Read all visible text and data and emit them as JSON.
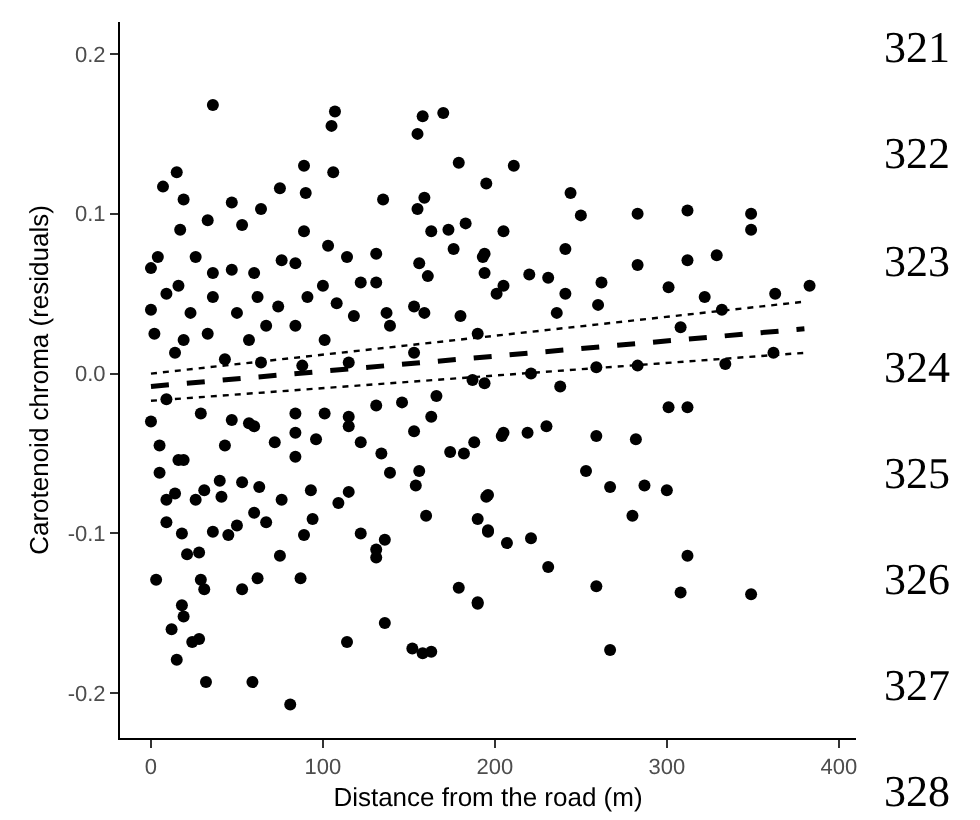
{
  "chart_data": {
    "type": "scatter",
    "xlabel": "Distance from the road (m)",
    "ylabel": "Carotenoid chroma (residuals)",
    "xlim": [
      -18,
      410
    ],
    "xticks": [
      0,
      100,
      200,
      300,
      400
    ],
    "ylim": [
      -0.228,
      0.22
    ],
    "yticks": [
      -0.2,
      -0.1,
      {
        "value": 0,
        "label": "0.0"
      },
      0.1,
      0.2
    ],
    "grid": false,
    "annotations": [
      "321",
      "322",
      "323",
      "324",
      "325",
      "326",
      "327",
      "328"
    ],
    "series": [
      {
        "color": "#000000",
        "marker": "circle",
        "x": [
          195,
          211,
          244,
          250,
          283,
          312,
          349,
          349,
          205,
          241,
          329,
          312,
          301,
          322,
          363,
          383,
          332,
          308,
          362,
          334,
          301,
          312,
          283,
          259,
          282,
          259,
          253,
          267,
          287,
          300,
          280,
          312,
          231,
          259,
          308,
          349,
          267,
          190,
          221,
          207,
          196,
          196,
          204,
          219,
          230,
          238,
          221,
          236,
          260,
          283,
          262,
          241,
          194,
          205,
          220,
          231,
          36,
          107,
          105,
          158,
          155,
          170,
          179,
          15,
          7,
          89,
          90,
          75,
          106,
          135,
          159,
          155,
          19,
          33,
          47,
          64,
          53,
          89,
          17,
          103,
          131,
          163,
          173,
          183,
          176,
          193,
          0,
          4,
          26,
          36,
          47,
          60,
          76,
          84,
          114,
          131,
          122,
          156,
          161,
          194,
          201,
          9,
          16,
          36,
          62,
          74,
          91,
          100,
          108,
          118,
          137,
          153,
          159,
          180,
          0,
          23,
          50,
          67,
          84,
          2,
          19,
          33,
          57,
          101,
          139,
          190,
          14,
          43,
          64,
          88,
          115,
          153,
          187,
          194,
          0,
          5,
          9,
          9,
          18,
          21,
          28,
          3,
          29,
          31,
          18,
          19,
          12,
          15,
          24,
          28,
          32,
          59,
          81,
          114,
          136,
          152,
          158,
          163,
          179,
          190,
          131,
          131,
          136,
          122,
          160,
          87,
          62,
          53,
          75,
          89,
          94,
          67,
          60,
          50,
          36,
          45,
          26,
          41,
          63,
          76,
          93,
          109,
          115,
          53,
          31,
          14,
          16,
          40,
          60,
          72,
          84,
          96,
          115,
          122,
          134,
          139,
          154,
          156,
          153,
          146,
          163,
          166,
          174,
          182,
          195,
          196,
          188,
          190,
          205,
          131,
          115,
          101,
          84,
          57,
          47,
          29,
          9,
          19,
          5,
          43,
          84
        ],
        "values": [
          0.119,
          0.13,
          0.113,
          0.099,
          0.1,
          0.102,
          0.1,
          0.09,
          0.089,
          0.078,
          0.074,
          0.071,
          0.054,
          0.048,
          0.05,
          0.055,
          0.04,
          0.029,
          0.013,
          0.006,
          -0.021,
          -0.021,
          0.005,
          0.004,
          -0.041,
          -0.039,
          -0.061,
          -0.071,
          -0.07,
          -0.073,
          -0.089,
          -0.114,
          -0.121,
          -0.133,
          -0.137,
          -0.138,
          -0.173,
          -0.143,
          -0.103,
          -0.106,
          -0.098,
          -0.076,
          -0.039,
          -0.037,
          -0.033,
          -0.008,
          0.0,
          0.038,
          0.043,
          0.068,
          0.057,
          0.05,
          0.075,
          0.055,
          0.062,
          0.06,
          0.168,
          0.164,
          0.155,
          0.161,
          0.15,
          0.163,
          0.132,
          0.126,
          0.117,
          0.13,
          0.113,
          0.116,
          0.126,
          0.109,
          0.11,
          0.103,
          0.109,
          0.096,
          0.107,
          0.103,
          0.093,
          0.089,
          0.09,
          0.08,
          0.075,
          0.089,
          0.09,
          0.094,
          0.078,
          0.073,
          0.066,
          0.073,
          0.073,
          0.063,
          0.065,
          0.063,
          0.071,
          0.069,
          0.073,
          0.057,
          0.057,
          0.069,
          0.061,
          0.063,
          0.05,
          0.05,
          0.055,
          0.048,
          0.048,
          0.042,
          0.048,
          0.055,
          0.044,
          0.036,
          0.038,
          0.042,
          0.038,
          0.036,
          0.04,
          0.038,
          0.038,
          0.03,
          0.03,
          0.025,
          0.021,
          0.025,
          0.021,
          0.021,
          0.03,
          0.025,
          0.013,
          0.009,
          0.007,
          0.005,
          0.007,
          0.013,
          -0.004,
          -0.006,
          -0.03,
          -0.062,
          -0.079,
          -0.093,
          -0.1,
          -0.113,
          -0.112,
          -0.129,
          -0.129,
          -0.135,
          -0.145,
          -0.152,
          -0.16,
          -0.179,
          -0.168,
          -0.166,
          -0.193,
          -0.193,
          -0.207,
          -0.168,
          -0.156,
          -0.172,
          -0.175,
          -0.174,
          -0.134,
          -0.144,
          -0.11,
          -0.115,
          -0.104,
          -0.1,
          -0.089,
          -0.128,
          -0.128,
          -0.135,
          -0.114,
          -0.101,
          -0.091,
          -0.093,
          -0.087,
          -0.095,
          -0.099,
          -0.101,
          -0.079,
          -0.077,
          -0.071,
          -0.079,
          -0.073,
          -0.081,
          -0.074,
          -0.068,
          -0.073,
          -0.075,
          -0.054,
          -0.067,
          -0.033,
          -0.043,
          -0.052,
          -0.041,
          -0.033,
          -0.043,
          -0.05,
          -0.062,
          -0.07,
          -0.061,
          -0.036,
          -0.018,
          -0.027,
          -0.014,
          -0.049,
          -0.05,
          -0.077,
          -0.099,
          -0.043,
          -0.091,
          -0.037,
          -0.02,
          -0.027,
          -0.025,
          -0.025,
          -0.031,
          -0.029,
          -0.025,
          -0.016,
          -0.054,
          -0.045,
          -0.045,
          -0.037
        ]
      },
      {
        "type": "line",
        "color": "#000000",
        "marker": "none",
        "line_style": "dashed",
        "x": [
          0,
          380
        ],
        "values": [
          -0.008,
          0.028
        ]
      },
      {
        "type": "line",
        "color": "#000000",
        "marker": "none",
        "line_style": "dotted",
        "x": [
          0,
          380
        ],
        "values": [
          -0.017,
          0.013
        ]
      },
      {
        "type": "line",
        "color": "#000000",
        "marker": "none",
        "line_style": "dotted",
        "x": [
          0,
          380
        ],
        "values": [
          0.0,
          0.045
        ]
      }
    ]
  }
}
